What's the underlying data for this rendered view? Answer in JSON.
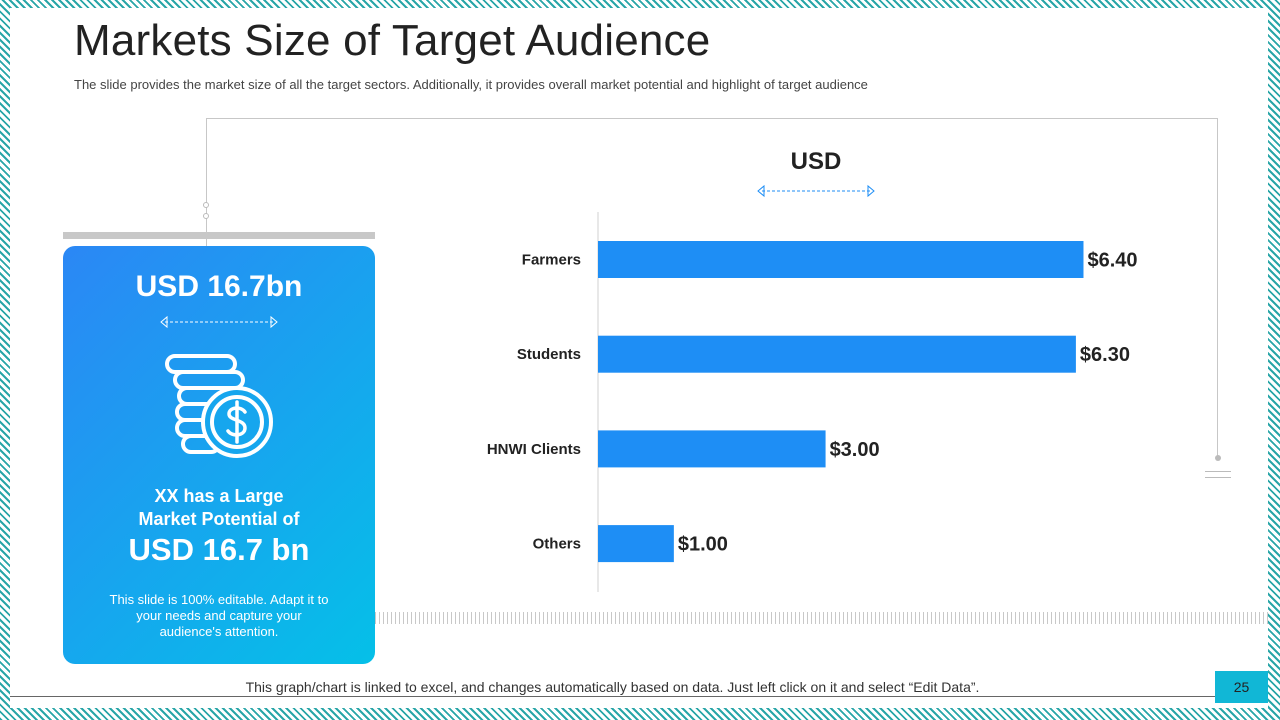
{
  "slide": {
    "title": "Markets Size of Target Audience",
    "subtitle": "The slide provides the market size of all the target sectors. Additionally, it provides overall market potential and highlight of target audience",
    "footer": "This graph/chart is linked to excel, and changes automatically based on data. Just left click on it and select “Edit Data”.",
    "page_number": "25"
  },
  "card": {
    "headline": "USD 16.7bn",
    "line1": "XX has a Large",
    "line2": "Market Potential of",
    "big_value": "USD 16.7 bn",
    "note": "This slide is 100% editable. Adapt it to your needs and capture your audience's attention.",
    "icon": "coin-stack-dollar-icon"
  },
  "colors": {
    "bar": "#1e8ef5",
    "card_start": "#2b87f5",
    "card_end": "#05c0e8",
    "accent": "#11b7d6"
  },
  "chart_data": {
    "type": "bar",
    "orientation": "horizontal",
    "title": "USD",
    "categories": [
      "Farmers",
      "Students",
      "HNWI Clients",
      "Others"
    ],
    "values": [
      6.4,
      6.3,
      3.0,
      1.0
    ],
    "data_labels": [
      "$6.40",
      "$6.30",
      "$3.00",
      "$1.00"
    ],
    "xlim": [
      0,
      7
    ],
    "grid": false,
    "legend": "none"
  }
}
